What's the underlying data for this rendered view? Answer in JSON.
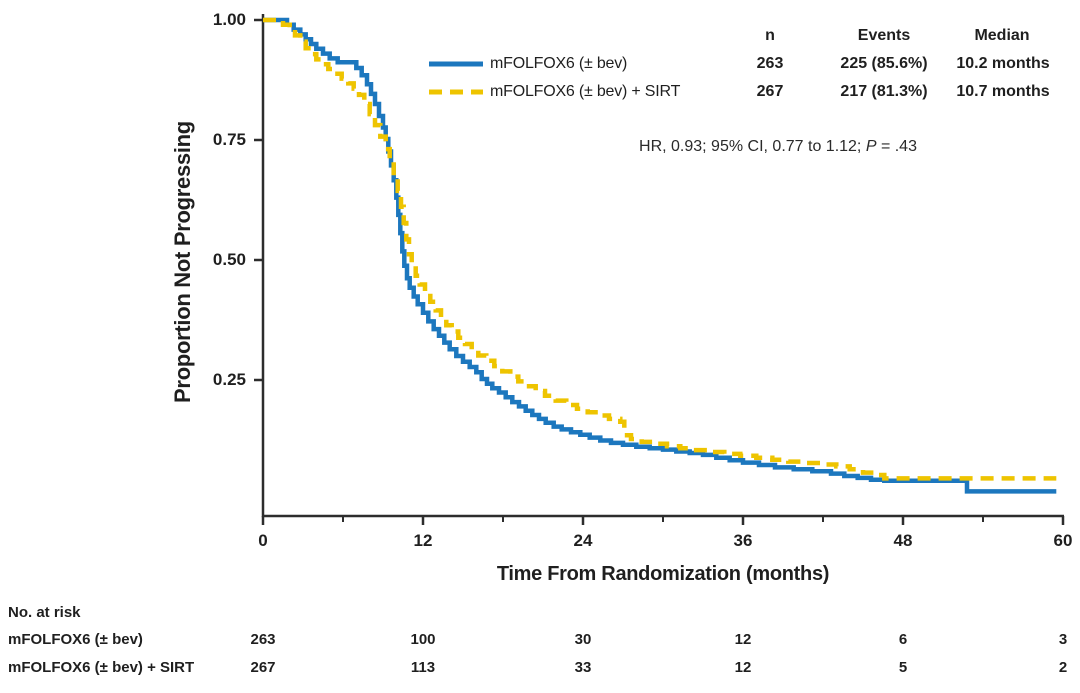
{
  "figure": {
    "y_axis": {
      "label": "Proportion Not Progressing",
      "ticks": [
        1.0,
        0.75,
        0.5,
        0.25
      ],
      "tick_labels": [
        "1.00",
        "0.75",
        "0.50",
        "0.25"
      ]
    },
    "x_axis": {
      "label": "Time From Randomization (months)",
      "ticks": [
        0,
        12,
        24,
        36,
        48,
        60
      ],
      "tick_labels": [
        "0",
        "12",
        "24",
        "36",
        "48",
        "60"
      ],
      "minor_ticks": [
        6,
        18,
        30,
        42,
        54
      ]
    },
    "axis_color": "#2d2d2d",
    "text_color": "#1f1f1f"
  },
  "legend": {
    "headers": {
      "n": "n",
      "events": "Events",
      "median": "Median"
    },
    "rows": [
      {
        "label": "mFOLFOX6 (± bev)",
        "n": "263",
        "events": "225 (85.6%)",
        "median": "10.2 months",
        "color": "#1c77be",
        "style": "solid"
      },
      {
        "label": "mFOLFOX6 (± bev) + SIRT",
        "n": "267",
        "events": "217 (81.3%)",
        "median": "10.7 months",
        "color": "#eec400",
        "style": "dashed"
      }
    ]
  },
  "annotation": {
    "text_before_p": "HR, 0.93; 95% CI, 0.77 to 1.12; ",
    "p_label": "P",
    "p_value": " = .43"
  },
  "risk_table": {
    "title": "No. at risk",
    "time_points": [
      0,
      12,
      24,
      36,
      48,
      60
    ],
    "rows": [
      {
        "label": "mFOLFOX6 (± bev)",
        "values": [
          "263",
          "100",
          "30",
          "12",
          "6",
          "3"
        ]
      },
      {
        "label": "mFOLFOX6 (± bev) + SIRT",
        "values": [
          "267",
          "113",
          "33",
          "12",
          "5",
          "2"
        ]
      }
    ]
  },
  "chart_data": {
    "type": "line",
    "subtype": "kaplan-meier-step",
    "title": "",
    "xlabel": "Time From Randomization (months)",
    "ylabel": "Proportion Not Progressing",
    "xlim": [
      0,
      60
    ],
    "ylim": [
      0,
      1.0
    ],
    "xticks": [
      0,
      12,
      24,
      36,
      48,
      60
    ],
    "xticks_minor": [
      6,
      18,
      30,
      42,
      54
    ],
    "yticks": [
      1.0,
      0.75,
      0.5,
      0.25
    ],
    "grid": false,
    "legend_position": "top-right",
    "annotation": "HR, 0.93; 95% CI, 0.77 to 1.12; P = .43",
    "series": [
      {
        "name": "mFOLFOX6 (± bev)",
        "id": "mfolfox6",
        "color": "#1c77be",
        "line_style": "solid",
        "n": 263,
        "events": 225,
        "events_pct": "85.6%",
        "median_months": 10.2,
        "points": [
          [
            0,
            1.0
          ],
          [
            1.8,
            0.99
          ],
          [
            2.3,
            0.98
          ],
          [
            2.8,
            0.97
          ],
          [
            3.2,
            0.96
          ],
          [
            3.6,
            0.95
          ],
          [
            4.0,
            0.94
          ],
          [
            4.5,
            0.93
          ],
          [
            5.0,
            0.92
          ],
          [
            5.6,
            0.912
          ],
          [
            7.0,
            0.9
          ],
          [
            7.4,
            0.885
          ],
          [
            7.8,
            0.866
          ],
          [
            8.1,
            0.846
          ],
          [
            8.4,
            0.825
          ],
          [
            8.7,
            0.8
          ],
          [
            9.0,
            0.776
          ],
          [
            9.2,
            0.752
          ],
          [
            9.4,
            0.726
          ],
          [
            9.6,
            0.697
          ],
          [
            9.8,
            0.666
          ],
          [
            10.0,
            0.63
          ],
          [
            10.15,
            0.594
          ],
          [
            10.3,
            0.556
          ],
          [
            10.45,
            0.518
          ],
          [
            10.6,
            0.488
          ],
          [
            10.8,
            0.462
          ],
          [
            11.0,
            0.442
          ],
          [
            11.3,
            0.424
          ],
          [
            11.6,
            0.408
          ],
          [
            12.0,
            0.39
          ],
          [
            12.4,
            0.372
          ],
          [
            12.8,
            0.356
          ],
          [
            13.2,
            0.342
          ],
          [
            13.6,
            0.328
          ],
          [
            14.0,
            0.314
          ],
          [
            14.5,
            0.3
          ],
          [
            15.0,
            0.288
          ],
          [
            15.5,
            0.277
          ],
          [
            16.0,
            0.266
          ],
          [
            16.4,
            0.252
          ],
          [
            16.8,
            0.242
          ],
          [
            17.2,
            0.233
          ],
          [
            17.7,
            0.224
          ],
          [
            18.2,
            0.214
          ],
          [
            18.7,
            0.204
          ],
          [
            19.2,
            0.195
          ],
          [
            19.7,
            0.186
          ],
          [
            20.2,
            0.177
          ],
          [
            20.7,
            0.169
          ],
          [
            21.2,
            0.161
          ],
          [
            21.8,
            0.153
          ],
          [
            22.4,
            0.147
          ],
          [
            23.1,
            0.141
          ],
          [
            23.8,
            0.136
          ],
          [
            24.5,
            0.13
          ],
          [
            25.3,
            0.124
          ],
          [
            26.1,
            0.119
          ],
          [
            27.0,
            0.115
          ],
          [
            28.0,
            0.111
          ],
          [
            29.0,
            0.108
          ],
          [
            30.0,
            0.105
          ],
          [
            31.0,
            0.101
          ],
          [
            32.0,
            0.098
          ],
          [
            33.0,
            0.094
          ],
          [
            34.0,
            0.088
          ],
          [
            35.0,
            0.083
          ],
          [
            36.0,
            0.078
          ],
          [
            37.2,
            0.073
          ],
          [
            38.4,
            0.068
          ],
          [
            39.8,
            0.064
          ],
          [
            41.2,
            0.06
          ],
          [
            42.6,
            0.055
          ],
          [
            43.6,
            0.05
          ],
          [
            44.6,
            0.046
          ],
          [
            45.6,
            0.042
          ],
          [
            46.6,
            0.04
          ],
          [
            52.8,
            0.018
          ],
          [
            59.5,
            0.018
          ]
        ]
      },
      {
        "name": "mFOLFOX6 (± bev) + SIRT",
        "id": "mfolfox6-sirt",
        "color": "#eec400",
        "line_style": "dashed",
        "n": 267,
        "events": 217,
        "events_pct": "81.3%",
        "median_months": 10.7,
        "points": [
          [
            0,
            1.0
          ],
          [
            1.5,
            0.99
          ],
          [
            2.0,
            0.98
          ],
          [
            2.4,
            0.968
          ],
          [
            2.8,
            0.955
          ],
          [
            3.2,
            0.941
          ],
          [
            3.6,
            0.929
          ],
          [
            4.0,
            0.918
          ],
          [
            4.4,
            0.908
          ],
          [
            4.9,
            0.898
          ],
          [
            5.4,
            0.888
          ],
          [
            5.9,
            0.878
          ],
          [
            6.4,
            0.868
          ],
          [
            6.8,
            0.857
          ],
          [
            7.2,
            0.844
          ],
          [
            7.6,
            0.825
          ],
          [
            8.0,
            0.804
          ],
          [
            8.4,
            0.781
          ],
          [
            8.8,
            0.757
          ],
          [
            9.2,
            0.731
          ],
          [
            9.5,
            0.704
          ],
          [
            9.8,
            0.675
          ],
          [
            10.1,
            0.644
          ],
          [
            10.35,
            0.611
          ],
          [
            10.55,
            0.577
          ],
          [
            10.75,
            0.543
          ],
          [
            10.95,
            0.512
          ],
          [
            11.15,
            0.487
          ],
          [
            11.45,
            0.467
          ],
          [
            11.75,
            0.449
          ],
          [
            12.15,
            0.431
          ],
          [
            12.55,
            0.413
          ],
          [
            12.95,
            0.395
          ],
          [
            13.35,
            0.379
          ],
          [
            13.75,
            0.364
          ],
          [
            14.15,
            0.351
          ],
          [
            14.65,
            0.338
          ],
          [
            15.15,
            0.325
          ],
          [
            15.65,
            0.313
          ],
          [
            16.15,
            0.301
          ],
          [
            16.75,
            0.29
          ],
          [
            17.35,
            0.279
          ],
          [
            17.95,
            0.268
          ],
          [
            18.55,
            0.257
          ],
          [
            19.15,
            0.247
          ],
          [
            19.75,
            0.237
          ],
          [
            20.45,
            0.227
          ],
          [
            21.15,
            0.217
          ],
          [
            21.95,
            0.207
          ],
          [
            22.75,
            0.198
          ],
          [
            23.55,
            0.19
          ],
          [
            24.35,
            0.183
          ],
          [
            25.15,
            0.176
          ],
          [
            25.95,
            0.169
          ],
          [
            26.8,
            0.163
          ],
          [
            27.1,
            0.135
          ],
          [
            27.6,
            0.127
          ],
          [
            28.4,
            0.121
          ],
          [
            29.3,
            0.117
          ],
          [
            30.3,
            0.112
          ],
          [
            31.3,
            0.108
          ],
          [
            32.3,
            0.104
          ],
          [
            33.4,
            0.1
          ],
          [
            34.6,
            0.096
          ],
          [
            35.8,
            0.092
          ],
          [
            37.0,
            0.088
          ],
          [
            38.2,
            0.084
          ],
          [
            39.4,
            0.08
          ],
          [
            40.6,
            0.077
          ],
          [
            41.8,
            0.074
          ],
          [
            43.0,
            0.07
          ],
          [
            44.0,
            0.064
          ],
          [
            45.0,
            0.057
          ],
          [
            46.0,
            0.052
          ],
          [
            46.6,
            0.045
          ],
          [
            59.5,
            0.045
          ]
        ]
      }
    ],
    "number_at_risk": {
      "time_points": [
        0,
        12,
        24,
        36,
        48,
        60
      ],
      "mfolfox6": [
        263,
        100,
        30,
        12,
        6,
        3
      ],
      "mfolfox6_sirt": [
        267,
        113,
        33,
        12,
        5,
        2
      ]
    }
  }
}
